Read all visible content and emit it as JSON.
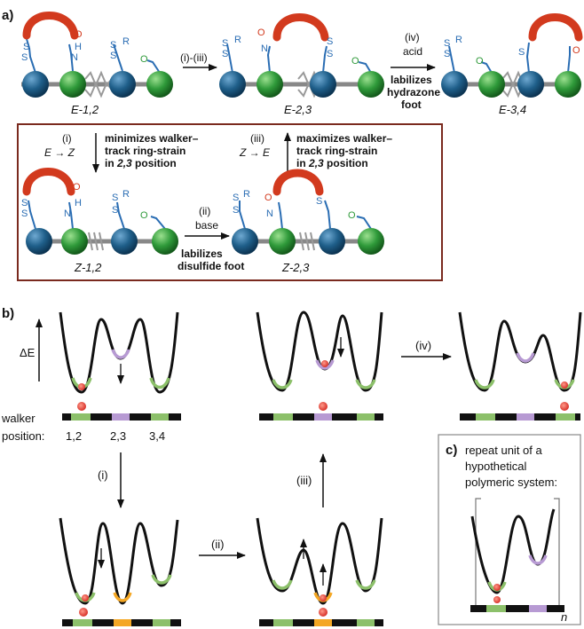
{
  "colors": {
    "walker": "#d23a1e",
    "track_blue": "#1f5f8a",
    "track_green": "#2f9a3a",
    "disulfide": "#2a6db3",
    "hydrazone": "#d23a1e",
    "green_well": "#8cc06a",
    "purple_well": "#b79ad3",
    "orange_well": "#f4a724",
    "box_border": "#7a2a1e"
  },
  "panel_a": {
    "label": "a)",
    "molecules": {
      "E12": "E-1,2",
      "E23": "E-2,3",
      "E34": "E-3,4",
      "Z12": "Z-1,2",
      "Z23": "Z-2,3"
    },
    "atoms": {
      "S": "S",
      "R": "R",
      "O": "O",
      "N": "N",
      "H": "H",
      "SR": "S.R"
    },
    "step_i_iii": "(i)-(iii)",
    "step_iv": {
      "label": "(iv)",
      "reagent": "acid",
      "note_line1": "labilizes",
      "note_line2": "hydrazone",
      "note_line3": "foot"
    },
    "step_i": {
      "label": "(i)",
      "transition": "E → Z",
      "note_line1": "minimizes walker–",
      "note_line2": "track ring-strain",
      "note_line3_pre": "in",
      "note_line3_it": "2,3",
      "note_line3_post": "position"
    },
    "step_ii": {
      "label": "(ii)",
      "reagent": "base",
      "note_line1": "labilizes",
      "note_line2": "disulfide foot"
    },
    "step_iii": {
      "label": "(iii)",
      "transition": "Z → E",
      "note_line1": "maximizes walker–",
      "note_line2": "track ring-strain",
      "note_line3_pre": "in",
      "note_line3_it": "2,3",
      "note_line3_post": "position"
    }
  },
  "panel_b": {
    "label": "b)",
    "energy_axis": "ΔE",
    "walker_label_1": "walker",
    "walker_label_2": "position:",
    "positions": [
      "1,2",
      "2,3",
      "3,4"
    ],
    "steps": {
      "i": "(i)",
      "ii": "(ii)",
      "iii": "(iii)",
      "iv": "(iv)"
    }
  },
  "panel_c": {
    "label": "c)",
    "text_line1": "repeat unit of a",
    "text_line2": "hypothetical",
    "text_line3": "polymeric system:",
    "subscript": "n"
  }
}
